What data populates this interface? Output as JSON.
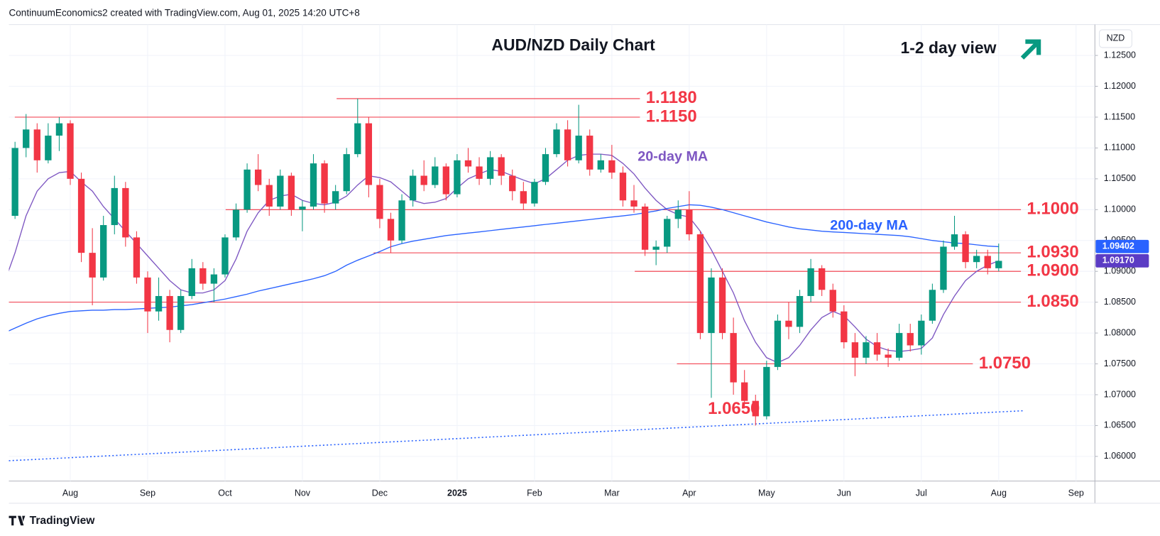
{
  "header": {
    "credit": "ContinuumEconomics2 created with TradingView.com, Aug 01, 2025 14:20 UTC+8",
    "brand": "TradingView"
  },
  "chart_data": {
    "type": "candlestick",
    "title": "AUD/NZD Daily Chart",
    "subtitle": "1-2 day view",
    "currency": "NZD",
    "up_color": "#089981",
    "down_color": "#f23645",
    "grid": true,
    "categories": [
      null,
      null,
      null,
      null,
      null,
      null,
      "Aug",
      null,
      null,
      null,
      null,
      null,
      null,
      "Sep",
      null,
      null,
      null,
      null,
      null,
      null,
      "Oct",
      null,
      null,
      null,
      null,
      null,
      null,
      "Nov",
      null,
      null,
      null,
      null,
      null,
      null,
      "Dec",
      null,
      null,
      null,
      null,
      null,
      null,
      "2025",
      null,
      null,
      null,
      null,
      null,
      null,
      "Feb",
      null,
      null,
      null,
      null,
      null,
      null,
      "Mar",
      null,
      null,
      null,
      null,
      null,
      null,
      "Apr",
      null,
      null,
      null,
      null,
      null,
      null,
      "May",
      null,
      null,
      null,
      null,
      null,
      null,
      "Jun",
      null,
      null,
      null,
      null,
      null,
      null,
      "Jul",
      null,
      null,
      null,
      null,
      null,
      null,
      "Aug",
      null,
      null,
      null,
      null,
      null,
      null,
      "Sep",
      null
    ],
    "ohlc": [
      [
        1.096,
        1.1,
        1.0955,
        1.099
      ],
      [
        1.099,
        1.111,
        1.0985,
        1.11
      ],
      [
        1.11,
        1.1155,
        1.1085,
        1.113
      ],
      [
        1.113,
        1.114,
        1.106,
        1.108
      ],
      [
        1.108,
        1.114,
        1.1075,
        1.112
      ],
      [
        1.112,
        1.115,
        1.1095,
        1.114
      ],
      [
        1.114,
        1.1145,
        1.104,
        1.105
      ],
      [
        1.105,
        1.106,
        1.0915,
        1.093
      ],
      [
        1.093,
        1.097,
        1.0845,
        1.089
      ],
      [
        1.089,
        1.099,
        1.0885,
        1.0975
      ],
      [
        1.0975,
        1.1055,
        1.096,
        1.1035
      ],
      [
        1.1035,
        1.1045,
        1.094,
        1.0955
      ],
      [
        1.0955,
        1.0965,
        1.088,
        1.089
      ],
      [
        1.089,
        1.09,
        1.08,
        1.0835
      ],
      [
        1.0835,
        1.089,
        1.082,
        1.086
      ],
      [
        1.086,
        1.087,
        1.0785,
        1.0805
      ],
      [
        1.0805,
        1.087,
        1.08,
        1.086
      ],
      [
        1.086,
        1.092,
        1.0855,
        1.0905
      ],
      [
        1.0905,
        1.0915,
        1.087,
        1.088
      ],
      [
        1.088,
        1.0905,
        1.085,
        1.0895
      ],
      [
        1.0895,
        1.096,
        1.089,
        1.0955
      ],
      [
        1.0955,
        1.101,
        1.095,
        1.1
      ],
      [
        1.1,
        1.1075,
        1.0995,
        1.1065
      ],
      [
        1.1065,
        1.109,
        1.103,
        1.104
      ],
      [
        1.104,
        1.105,
        1.099,
        1.1005
      ],
      [
        1.1005,
        1.1065,
        1.1,
        1.1055
      ],
      [
        1.1055,
        1.106,
        1.099,
        1.1
      ],
      [
        1.1,
        1.1015,
        1.0965,
        1.1005
      ],
      [
        1.1005,
        1.109,
        1.1,
        1.1075
      ],
      [
        1.1075,
        1.108,
        1.0995,
        1.101
      ],
      [
        1.101,
        1.104,
        1.1,
        1.103
      ],
      [
        1.103,
        1.11,
        1.1025,
        1.109
      ],
      [
        1.109,
        1.118,
        1.1085,
        1.114
      ],
      [
        1.114,
        1.115,
        1.102,
        1.104
      ],
      [
        1.104,
        1.105,
        1.097,
        1.0985
      ],
      [
        1.0985,
        1.0995,
        1.093,
        1.095
      ],
      [
        1.095,
        1.1025,
        1.0945,
        1.1015
      ],
      [
        1.1015,
        1.1065,
        1.1005,
        1.1055
      ],
      [
        1.1055,
        1.108,
        1.103,
        1.104
      ],
      [
        1.104,
        1.1085,
        1.1035,
        1.107
      ],
      [
        1.107,
        1.1075,
        1.1015,
        1.1025
      ],
      [
        1.1025,
        1.109,
        1.102,
        1.108
      ],
      [
        1.108,
        1.11,
        1.106,
        1.107
      ],
      [
        1.107,
        1.1085,
        1.104,
        1.105
      ],
      [
        1.105,
        1.1095,
        1.104,
        1.1085
      ],
      [
        1.1085,
        1.109,
        1.104,
        1.1055
      ],
      [
        1.1055,
        1.1065,
        1.1015,
        1.103
      ],
      [
        1.103,
        1.1045,
        1.1,
        1.101
      ],
      [
        1.101,
        1.105,
        1.1005,
        1.1045
      ],
      [
        1.1045,
        1.11,
        1.104,
        1.109
      ],
      [
        1.109,
        1.114,
        1.1085,
        1.113
      ],
      [
        1.113,
        1.1145,
        1.107,
        1.108
      ],
      [
        1.108,
        1.117,
        1.1075,
        1.112
      ],
      [
        1.112,
        1.113,
        1.1055,
        1.1065
      ],
      [
        1.1065,
        1.109,
        1.106,
        1.108
      ],
      [
        1.108,
        1.1105,
        1.105,
        1.106
      ],
      [
        1.106,
        1.107,
        1.1005,
        1.1015
      ],
      [
        1.1015,
        1.104,
        1.0995,
        1.1005
      ],
      [
        1.1005,
        1.101,
        1.0925,
        1.0935
      ],
      [
        1.0935,
        1.095,
        1.091,
        1.094
      ],
      [
        1.094,
        1.099,
        1.093,
        1.0985
      ],
      [
        1.0985,
        1.1015,
        1.097,
        1.1
      ],
      [
        1.1,
        1.103,
        1.095,
        1.096
      ],
      [
        1.096,
        1.0965,
        1.079,
        1.08
      ],
      [
        1.08,
        1.0905,
        1.0695,
        1.089
      ],
      [
        1.089,
        1.0905,
        1.079,
        1.08
      ],
      [
        1.08,
        1.0825,
        1.07,
        1.072
      ],
      [
        1.072,
        1.074,
        1.068,
        1.069
      ],
      [
        1.069,
        1.07,
        1.065,
        1.0665
      ],
      [
        1.0665,
        1.0755,
        1.066,
        1.0745
      ],
      [
        1.0745,
        1.083,
        1.074,
        1.082
      ],
      [
        1.082,
        1.085,
        1.079,
        1.081
      ],
      [
        1.081,
        1.087,
        1.08,
        1.086
      ],
      [
        1.086,
        1.092,
        1.085,
        1.0905
      ],
      [
        1.0905,
        1.091,
        1.086,
        1.087
      ],
      [
        1.087,
        1.088,
        1.0825,
        1.0835
      ],
      [
        1.0835,
        1.0845,
        1.0775,
        1.0785
      ],
      [
        1.0785,
        1.08,
        1.073,
        1.076
      ],
      [
        1.076,
        1.0795,
        1.075,
        1.0785
      ],
      [
        1.0785,
        1.08,
        1.0755,
        1.0765
      ],
      [
        1.0765,
        1.0775,
        1.0745,
        1.076
      ],
      [
        1.076,
        1.0815,
        1.0755,
        1.08
      ],
      [
        1.08,
        1.0815,
        1.077,
        1.078
      ],
      [
        1.078,
        1.083,
        1.0765,
        1.082
      ],
      [
        1.082,
        1.088,
        1.0815,
        1.087
      ],
      [
        1.087,
        1.095,
        1.0865,
        1.094
      ],
      [
        1.094,
        1.099,
        1.0935,
        1.096
      ],
      [
        1.096,
        1.0965,
        1.0905,
        1.0915
      ],
      [
        1.0915,
        1.0935,
        1.0905,
        1.0925
      ],
      [
        1.0925,
        1.0935,
        1.0895,
        1.0905
      ],
      [
        1.0905,
        1.0945,
        1.09,
        1.0917
      ],
      null,
      null,
      null,
      null,
      null,
      null,
      null,
      null
    ],
    "series": [
      {
        "name": "20-day MA",
        "color": "#7e57c2",
        "values": [
          1.088,
          1.093,
          1.099,
          1.103,
          1.105,
          1.106,
          1.1062,
          1.1045,
          1.103,
          1.1005,
          1.0985,
          1.0965,
          1.0945,
          1.0925,
          1.0905,
          1.0885,
          1.087,
          1.0865,
          1.0865,
          1.087,
          1.0885,
          1.092,
          1.0965,
          1.0995,
          1.1015,
          1.1022,
          1.1025,
          1.1015,
          1.101,
          1.1008,
          1.1012,
          1.1022,
          1.104,
          1.1055,
          1.1052,
          1.1045,
          1.103,
          1.1015,
          1.101,
          1.1012,
          1.1018,
          1.1035,
          1.105,
          1.1058,
          1.1065,
          1.1062,
          1.1055,
          1.1048,
          1.1042,
          1.105,
          1.1065,
          1.108,
          1.1088,
          1.109,
          1.109,
          1.1088,
          1.1075,
          1.1058,
          1.1035,
          1.1015,
          1.1,
          1.0992,
          1.0988,
          1.0965,
          1.0935,
          1.09,
          1.0865,
          1.082,
          1.0785,
          1.076,
          1.0752,
          1.076,
          1.078,
          1.0805,
          1.0825,
          1.0835,
          1.0828,
          1.081,
          1.079,
          1.0778,
          1.0772,
          1.077,
          1.0772,
          1.0775,
          1.0792,
          1.083,
          1.086,
          1.0885,
          1.09,
          1.091,
          1.0917,
          null,
          null,
          null,
          null,
          null,
          null,
          null,
          null
        ]
      },
      {
        "name": "200-day MA",
        "color": "#2962ff",
        "values": [
          1.08,
          1.0808,
          1.0816,
          1.0823,
          1.0828,
          1.0832,
          1.0835,
          1.0836,
          1.0837,
          1.0837,
          1.0838,
          1.0838,
          1.0839,
          1.084,
          1.0841,
          1.0842,
          1.0844,
          1.0846,
          1.0849,
          1.0852,
          1.0855,
          1.0859,
          1.0863,
          1.0868,
          1.0872,
          1.0876,
          1.088,
          1.0884,
          1.0888,
          1.0893,
          1.09,
          1.091,
          1.0918,
          1.0925,
          1.0932,
          1.094,
          1.0945,
          1.0949,
          1.0952,
          1.0955,
          1.0958,
          1.096,
          1.0962,
          1.0964,
          1.0966,
          1.0968,
          1.097,
          1.0972,
          1.0974,
          1.0976,
          1.0978,
          1.098,
          1.0982,
          1.0984,
          1.0986,
          1.0988,
          1.099,
          1.0992,
          1.0995,
          1.0998,
          1.1002,
          1.1005,
          1.1008,
          1.1007,
          1.1004,
          1.1,
          1.0995,
          1.099,
          1.0985,
          1.098,
          1.0976,
          1.0972,
          1.0969,
          1.0967,
          1.0965,
          1.0964,
          1.0963,
          1.0962,
          1.0961,
          1.096,
          1.0959,
          1.0958,
          1.0956,
          1.0953,
          1.095,
          1.0948,
          1.0946,
          1.0945,
          1.0943,
          1.0941,
          1.094,
          null,
          null,
          null,
          null,
          null,
          null,
          null,
          null
        ]
      }
    ],
    "ylim": [
      1.056,
      1.13
    ],
    "yticks": [
      {
        "value": 1.06,
        "label": "1.06000"
      },
      {
        "value": 1.065,
        "label": "1.06500"
      },
      {
        "value": 1.07,
        "label": "1.07000"
      },
      {
        "value": 1.075,
        "label": "1.07500"
      },
      {
        "value": 1.08,
        "label": "1.08000"
      },
      {
        "value": 1.085,
        "label": "1.08500"
      },
      {
        "value": 1.09,
        "label": "1.09000"
      },
      {
        "value": 1.095,
        "label": "1.09500"
      },
      {
        "value": 1.1,
        "label": "1.10000"
      },
      {
        "value": 1.105,
        "label": "1.10500"
      },
      {
        "value": 1.11,
        "label": "1.11000"
      },
      {
        "value": 1.115,
        "label": "1.11500"
      },
      {
        "value": 1.12,
        "label": "1.12000"
      },
      {
        "value": 1.125,
        "label": "1.12500"
      }
    ],
    "levels": [
      {
        "value": 1.118,
        "label": "1.1180"
      },
      {
        "value": 1.115,
        "label": "1.1150"
      },
      {
        "value": 1.1,
        "label": "1.1000"
      },
      {
        "value": 1.093,
        "label": "1.0930"
      },
      {
        "value": 1.09,
        "label": "1.0900"
      },
      {
        "value": 1.085,
        "label": "1.0850"
      },
      {
        "value": 1.075,
        "label": "1.0750"
      }
    ],
    "low_label": {
      "value": 1.065,
      "label": "1.0650"
    },
    "trendline": {
      "start": 1.0593,
      "end": 1.0674,
      "color": "#2962ff"
    },
    "price_labels": [
      {
        "value": 1.09402,
        "label": "1.09402",
        "color": "#2962ff"
      },
      {
        "value": 1.0917,
        "label": "1.09170",
        "color": "#5b3cc4"
      }
    ],
    "arrow_color": "#089981",
    "level_color": "#f23645"
  }
}
